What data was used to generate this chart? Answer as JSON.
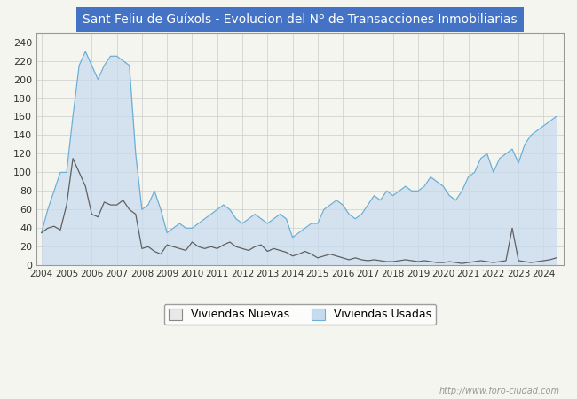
{
  "title": "Sant Feliu de Guíxols - Evolucion del Nº de Transacciones Inmobiliarias",
  "title_color": "#ffffff",
  "title_bg_color": "#4472c4",
  "watermark": "http://www.foro-ciudad.com",
  "legend_labels": [
    "Viviendas Nuevas",
    "Viviendas Usadas"
  ],
  "ylim": [
    0,
    250
  ],
  "yticks": [
    0,
    20,
    40,
    60,
    80,
    100,
    120,
    140,
    160,
    180,
    200,
    220,
    240
  ],
  "nueva_line_color": "#606060",
  "usada_line_color": "#6baed6",
  "usada_fill_color": "#c6dbef",
  "background_color": "#f5f5f0",
  "plot_bg_color": "#f5f5f0",
  "grid_color": "#cccccc",
  "nueva_legend_fill": "#e8e8e8",
  "usada_legend_fill": "#c6dbef",
  "viviendas_nuevas": [
    35,
    40,
    42,
    38,
    65,
    115,
    100,
    85,
    55,
    52,
    68,
    65,
    65,
    70,
    60,
    55,
    18,
    20,
    15,
    12,
    22,
    20,
    18,
    16,
    25,
    20,
    18,
    20,
    18,
    22,
    25,
    20,
    18,
    16,
    20,
    22,
    15,
    18,
    16,
    14,
    10,
    12,
    15,
    12,
    8,
    10,
    12,
    10,
    8,
    6,
    8,
    6,
    5,
    6,
    5,
    4,
    4,
    5,
    6,
    5,
    4,
    5,
    4,
    3,
    3,
    4,
    3,
    2,
    3,
    4,
    5,
    4,
    3,
    4,
    5,
    40,
    5,
    4,
    3,
    4,
    5,
    6,
    8
  ],
  "viviendas_usadas": [
    35,
    60,
    80,
    100,
    100,
    160,
    215,
    230,
    215,
    200,
    215,
    225,
    225,
    220,
    215,
    120,
    60,
    65,
    80,
    60,
    35,
    40,
    45,
    40,
    40,
    45,
    50,
    55,
    60,
    65,
    60,
    50,
    45,
    50,
    55,
    50,
    45,
    50,
    55,
    50,
    30,
    35,
    40,
    45,
    45,
    60,
    65,
    70,
    65,
    55,
    50,
    55,
    65,
    75,
    70,
    80,
    75,
    80,
    85,
    80,
    80,
    85,
    95,
    90,
    85,
    75,
    70,
    80,
    95,
    100,
    115,
    120,
    100,
    115,
    120,
    125,
    110,
    130,
    140,
    145,
    150,
    155,
    160
  ]
}
